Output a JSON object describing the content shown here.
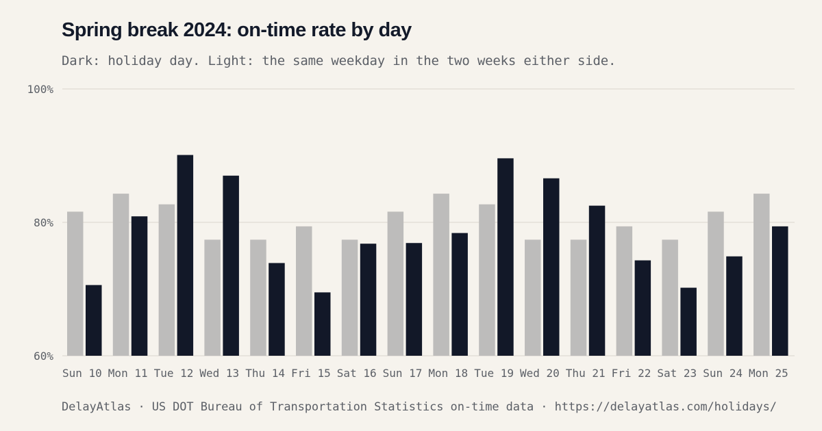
{
  "chart_data": {
    "type": "bar",
    "title": "Spring break 2024: on-time rate by day",
    "subtitle": "Dark: holiday day. Light: the same weekday in the two weeks either side.",
    "source": "DelayAtlas · US DOT Bureau of Transportation Statistics on-time data · https://delayatlas.com/holidays/",
    "categories": [
      "Sun 10",
      "Mon 11",
      "Tue 12",
      "Wed 13",
      "Thu 14",
      "Fri 15",
      "Sat 16",
      "Sun 17",
      "Mon 18",
      "Tue 19",
      "Wed 20",
      "Thu 21",
      "Fri 22",
      "Sat 23",
      "Sun 24",
      "Mon 25"
    ],
    "series": [
      {
        "values": [
          81.6,
          84.3,
          82.7,
          77.4,
          77.4,
          79.4,
          77.4,
          81.6,
          84.3,
          82.7,
          77.4,
          77.4,
          79.4,
          77.4,
          81.6,
          84.3
        ],
        "color": "#bdbcbb"
      },
      {
        "values": [
          70.6,
          80.9,
          90.1,
          87.0,
          73.9,
          69.5,
          76.8,
          76.9,
          78.4,
          89.6,
          86.6,
          82.5,
          74.3,
          70.2,
          74.9,
          79.4
        ],
        "color": "#121828"
      }
    ],
    "ylim": [
      60,
      100
    ],
    "yticks": [
      60,
      80,
      100
    ],
    "ytick_labels": [
      "60%",
      "80%",
      "100%"
    ],
    "grid": true,
    "legend": "none"
  }
}
